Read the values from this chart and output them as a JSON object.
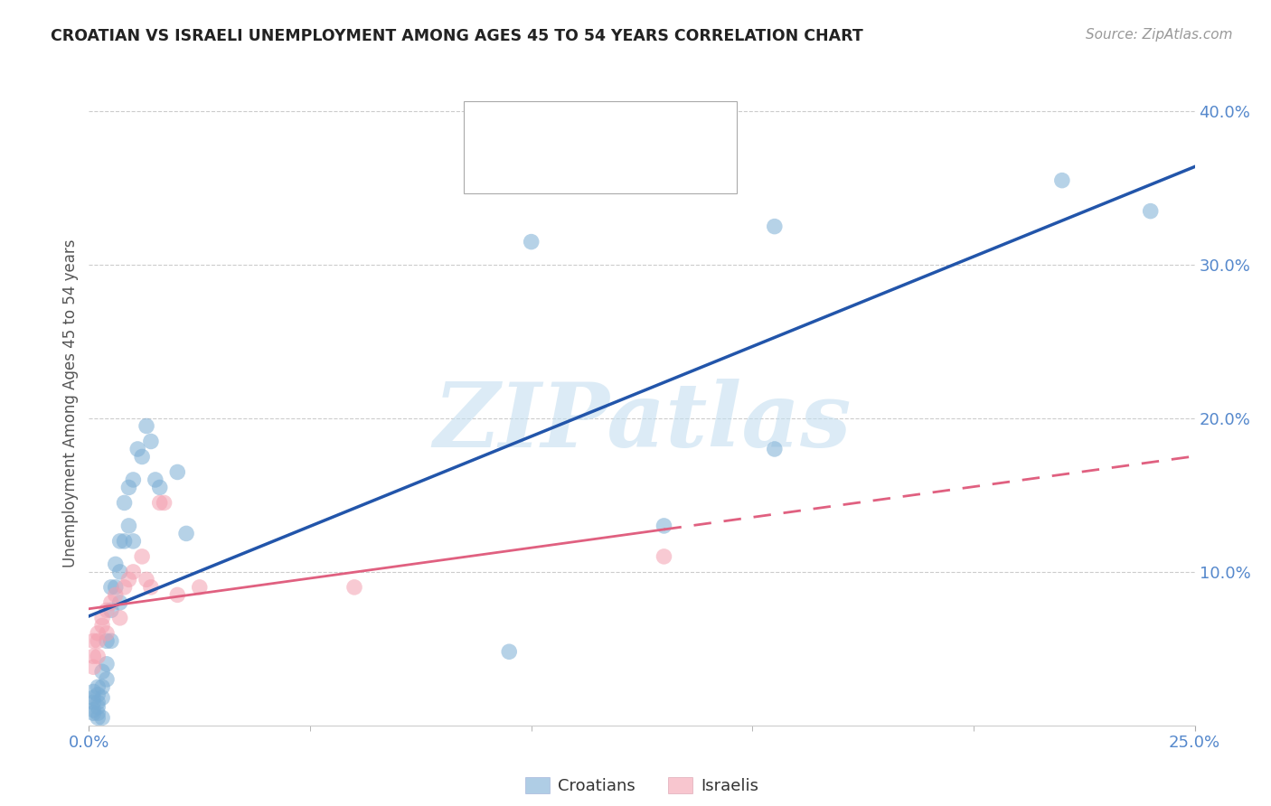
{
  "title": "CROATIAN VS ISRAELI UNEMPLOYMENT AMONG AGES 45 TO 54 YEARS CORRELATION CHART",
  "source": "Source: ZipAtlas.com",
  "ylabel": "Unemployment Among Ages 45 to 54 years",
  "watermark": "ZIPatlas",
  "xlim": [
    0.0,
    0.25
  ],
  "ylim": [
    0.0,
    0.42
  ],
  "xtick_positions": [
    0.0,
    0.25
  ],
  "xtick_labels": [
    "0.0%",
    "25.0%"
  ],
  "ytick_positions": [
    0.1,
    0.2,
    0.3,
    0.4
  ],
  "ytick_labels": [
    "10.0%",
    "20.0%",
    "30.0%",
    "40.0%"
  ],
  "tick_color": "#5588cc",
  "croatian_color": "#7aadd4",
  "israeli_color": "#f4a0b0",
  "croatian_line_color": "#2255aa",
  "israeli_line_color": "#e06080",
  "legend_label_croatians": "Croatians",
  "legend_label_israelis": "Israelis",
  "croatian_x": [
    0.001,
    0.001,
    0.001,
    0.001,
    0.001,
    0.002,
    0.002,
    0.002,
    0.002,
    0.002,
    0.002,
    0.003,
    0.003,
    0.003,
    0.003,
    0.004,
    0.004,
    0.004,
    0.005,
    0.005,
    0.005,
    0.006,
    0.006,
    0.007,
    0.007,
    0.007,
    0.008,
    0.008,
    0.009,
    0.009,
    0.01,
    0.01,
    0.011,
    0.012,
    0.013,
    0.014,
    0.015,
    0.016,
    0.02,
    0.022,
    0.1,
    0.13,
    0.155,
    0.22,
    0.24,
    0.155,
    0.095
  ],
  "croatian_y": [
    0.022,
    0.018,
    0.015,
    0.01,
    0.008,
    0.025,
    0.02,
    0.015,
    0.012,
    0.008,
    0.005,
    0.035,
    0.025,
    0.018,
    0.005,
    0.055,
    0.04,
    0.03,
    0.09,
    0.075,
    0.055,
    0.105,
    0.09,
    0.12,
    0.1,
    0.08,
    0.145,
    0.12,
    0.155,
    0.13,
    0.16,
    0.12,
    0.18,
    0.175,
    0.195,
    0.185,
    0.16,
    0.155,
    0.165,
    0.125,
    0.315,
    0.13,
    0.18,
    0.355,
    0.335,
    0.325,
    0.048
  ],
  "israeli_x": [
    0.001,
    0.001,
    0.001,
    0.002,
    0.002,
    0.002,
    0.003,
    0.003,
    0.004,
    0.004,
    0.005,
    0.006,
    0.007,
    0.008,
    0.009,
    0.01,
    0.012,
    0.013,
    0.014,
    0.016,
    0.017,
    0.02,
    0.025,
    0.06,
    0.13
  ],
  "israeli_y": [
    0.055,
    0.045,
    0.038,
    0.06,
    0.055,
    0.045,
    0.07,
    0.065,
    0.075,
    0.06,
    0.08,
    0.085,
    0.07,
    0.09,
    0.095,
    0.1,
    0.11,
    0.095,
    0.09,
    0.145,
    0.145,
    0.085,
    0.09,
    0.09,
    0.11
  ]
}
